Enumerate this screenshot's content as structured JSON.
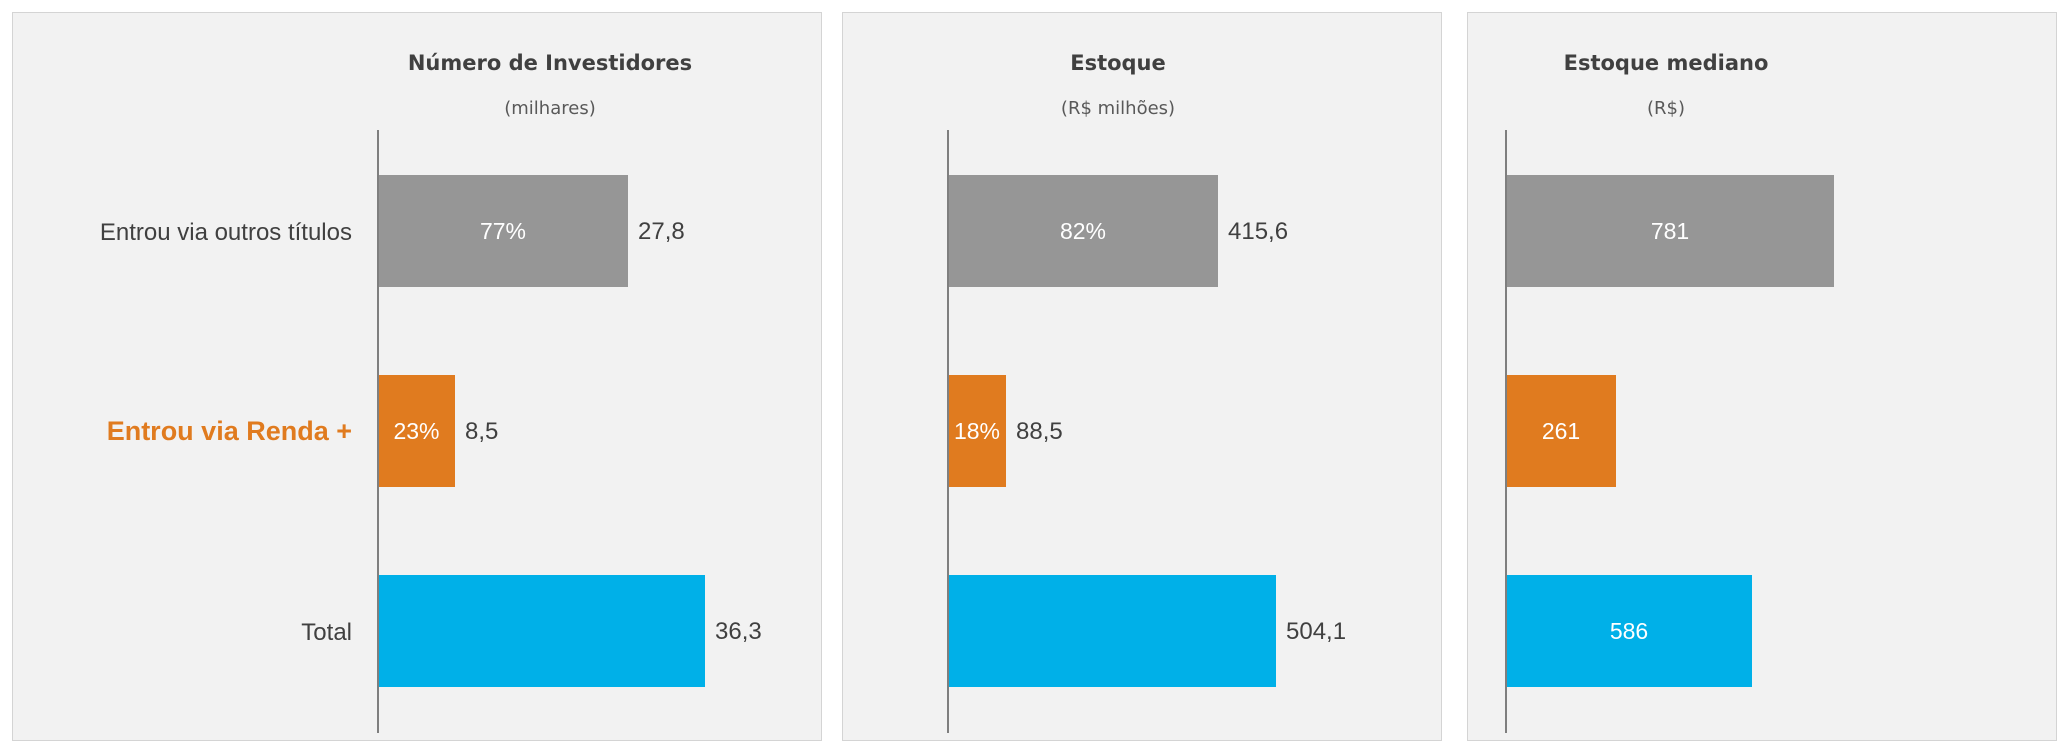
{
  "chart_data": [
    {
      "type": "bar",
      "orientation": "horizontal",
      "title": "Número de Investidores",
      "subtitle": "(milhares)",
      "categories": [
        "Entrou via outros títulos",
        "Entrou via Renda +",
        "Total"
      ],
      "highlight_category": "Entrou via Renda +",
      "values": [
        27.8,
        8.5,
        36.3
      ],
      "value_labels": [
        "27,8",
        "8,5",
        "36,3"
      ],
      "share_labels": [
        "77%",
        "23%",
        ""
      ],
      "colors": [
        "#969696",
        "#e07b1f",
        "#00b0e8"
      ],
      "xlim": [
        0,
        36.3
      ]
    },
    {
      "type": "bar",
      "orientation": "horizontal",
      "title": "Estoque",
      "subtitle": "(R$ milhões)",
      "categories": [
        "Entrou via outros títulos",
        "Entrou via Renda +",
        "Total"
      ],
      "values": [
        415.6,
        88.5,
        504.1
      ],
      "value_labels": [
        "415,6",
        "88,5",
        "504,1"
      ],
      "share_labels": [
        "82%",
        "18%",
        ""
      ],
      "colors": [
        "#969696",
        "#e07b1f",
        "#00b0e8"
      ],
      "xlim": [
        0,
        504.1
      ]
    },
    {
      "type": "bar",
      "orientation": "horizontal",
      "title": "Estoque mediano",
      "subtitle": "(R$)",
      "categories": [
        "Entrou via outros títulos",
        "Entrou via Renda +",
        "Total"
      ],
      "values": [
        781,
        261,
        586
      ],
      "value_labels": [
        "781",
        "261",
        "586"
      ],
      "share_labels": [
        "",
        "",
        ""
      ],
      "colors": [
        "#969696",
        "#e07b1f",
        "#00b0e8"
      ],
      "xlim": [
        0,
        781
      ]
    }
  ]
}
